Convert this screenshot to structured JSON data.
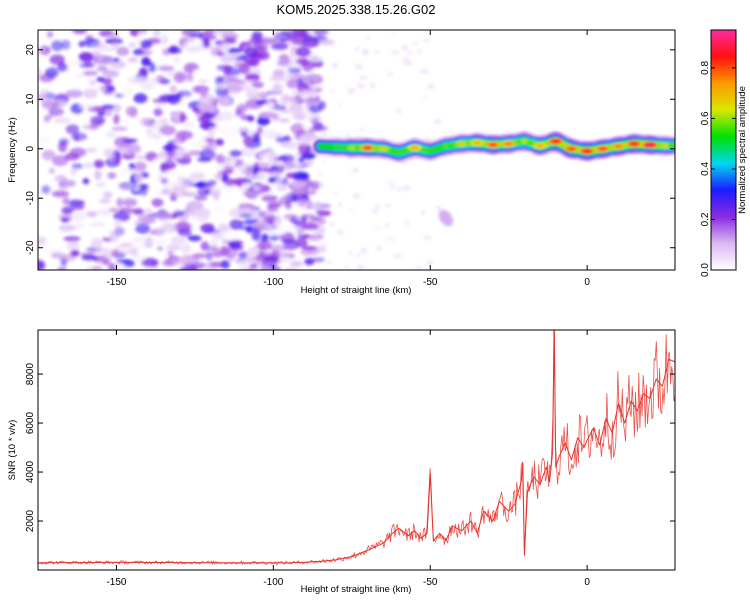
{
  "title": "KOM5.2025.338.15.26.G02",
  "chart_data": [
    {
      "type": "heatmap",
      "name": "spectrogram",
      "xlabel": "Height of straight line (km)",
      "ylabel": "Frequency (Hz)",
      "xlim": [
        -175,
        28
      ],
      "ylim": [
        -24.5,
        24
      ],
      "xticks": [
        -150,
        -100,
        -50,
        0
      ],
      "xtick_labels": [
        "-150",
        "-100",
        "-50",
        "0"
      ],
      "yticks": [
        20,
        10,
        0,
        -10,
        -20
      ],
      "ytick_labels": [
        "20",
        "10",
        "0",
        "-10",
        "-20"
      ],
      "noise_region_x": [
        -175,
        -85
      ],
      "noise_region_amplitude": [
        0.0,
        0.3
      ],
      "signal_track": {
        "x": [
          -85,
          -80,
          -75,
          -70,
          -65,
          -60,
          -55,
          -50,
          -45,
          -40,
          -35,
          -30,
          -25,
          -20,
          -15,
          -10,
          -5,
          0,
          5,
          10,
          15,
          20,
          25,
          28
        ],
        "frequency": [
          0.5,
          0.3,
          0.2,
          0.2,
          0.0,
          -0.8,
          0.2,
          -0.5,
          0.5,
          1.0,
          1.2,
          0.8,
          1.0,
          1.5,
          0.6,
          1.5,
          0.0,
          -0.5,
          0.0,
          0.5,
          1.0,
          0.8,
          0.6,
          0.6
        ],
        "amplitude": [
          0.45,
          0.55,
          0.65,
          0.85,
          0.7,
          0.5,
          0.75,
          0.55,
          0.6,
          0.7,
          0.75,
          0.85,
          0.8,
          0.65,
          0.75,
          0.9,
          0.85,
          0.9,
          0.85,
          0.8,
          0.9,
          0.95,
          0.7,
          0.6
        ]
      },
      "faint_blob": {
        "x": -45,
        "frequency": -14
      },
      "colorbar": {
        "label": "Normalized spectral amplitude",
        "range": [
          0.0,
          0.95
        ],
        "ticks": [
          0.0,
          0.2,
          0.4,
          0.6,
          0.8
        ],
        "tick_labels": [
          "0.0",
          "0.2",
          "0.4",
          "0.6",
          "0.8"
        ],
        "colors": [
          "#ffffff",
          "#dab8f2",
          "#8a2be2",
          "#1c1cff",
          "#00d8f0",
          "#00e000",
          "#d8e800",
          "#ff9900",
          "#ff1010",
          "#ff2aa0"
        ]
      }
    },
    {
      "type": "line",
      "name": "snr",
      "xlabel": "Height of straight line (km)",
      "ylabel": "SNR (10 * v/v)",
      "xlim": [
        -175,
        28
      ],
      "ylim": [
        0,
        9800
      ],
      "xticks": [
        -150,
        -100,
        -50,
        0
      ],
      "xtick_labels": [
        "-150",
        "-100",
        "-50",
        "0"
      ],
      "yticks": [
        2000,
        4000,
        6000,
        8000
      ],
      "ytick_labels": [
        "2000",
        "4000",
        "6000",
        "8000"
      ],
      "line_color": "#e8322c",
      "series": [
        {
          "name": "SNR",
          "x": [
            -175,
            -150,
            -120,
            -95,
            -90,
            -85,
            -80,
            -75,
            -70,
            -65,
            -62,
            -60,
            -57,
            -55,
            -53,
            -51,
            -50,
            -49,
            -47,
            -45,
            -43,
            -40,
            -37,
            -35,
            -33,
            -30,
            -28,
            -25,
            -23,
            -21,
            -20.5,
            -20,
            -19,
            -17,
            -15,
            -13,
            -12,
            -11,
            -10.5,
            -10,
            -9,
            -7,
            -5,
            -3,
            -1,
            0,
            2,
            4,
            6,
            8,
            10,
            12,
            14,
            16,
            18,
            20,
            22,
            24,
            26,
            28
          ],
          "y": [
            300,
            310,
            300,
            290,
            320,
            350,
            420,
            550,
            800,
            1100,
            1500,
            1700,
            1400,
            1600,
            1300,
            1500,
            3900,
            1200,
            1500,
            1200,
            1800,
            1600,
            2000,
            1500,
            2400,
            2000,
            2800,
            2400,
            2700,
            3600,
            4400,
            600,
            3200,
            3800,
            3500,
            4200,
            3600,
            4800,
            9800,
            4200,
            4600,
            5200,
            4500,
            5400,
            5000,
            5300,
            5800,
            5100,
            6200,
            5600,
            6800,
            6000,
            6900,
            6500,
            7200,
            7000,
            7800,
            7500,
            8600,
            8500
          ]
        }
      ]
    }
  ]
}
